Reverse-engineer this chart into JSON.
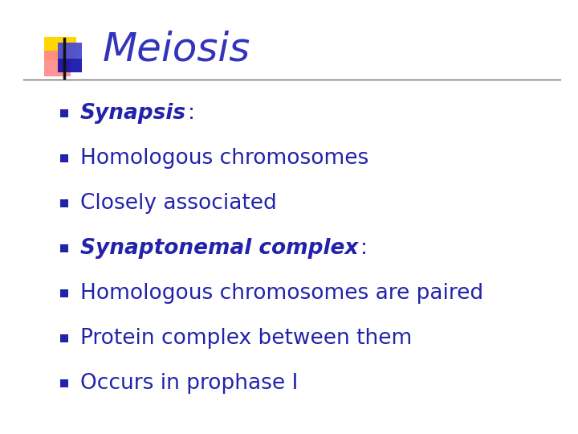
{
  "title": "Meiosis",
  "title_color": "#3333BB",
  "title_fontsize": 36,
  "background_color": "#FFFFFF",
  "bullet_color": "#2222AA",
  "bullet_square_color": "#2222AA",
  "line_color": "#444444",
  "bullet_items": [
    {
      "text_bold_italic": "Synapsis",
      "text_normal": ":",
      "has_bold": true
    },
    {
      "text_bold_italic": "",
      "text_normal": "Homologous chromosomes",
      "has_bold": false
    },
    {
      "text_bold_italic": "",
      "text_normal": "Closely associated",
      "has_bold": false
    },
    {
      "text_bold_italic": "Synaptonemal complex",
      "text_normal": ":",
      "has_bold": true
    },
    {
      "text_bold_italic": "",
      "text_normal": "Homologous chromosomes are paired",
      "has_bold": false
    },
    {
      "text_bold_italic": "",
      "text_normal": "Protein complex between them",
      "has_bold": false
    },
    {
      "text_bold_italic": "",
      "text_normal": "Occurs in prophase I",
      "has_bold": false
    }
  ],
  "bullet_fontsize": 19,
  "logo_yellow": "#FFD700",
  "logo_red_light": "#FF8888",
  "logo_red_dark": "#FF2222",
  "logo_blue_dark": "#1111AA",
  "logo_blue_mid": "#4444CC",
  "logo_blue_light": "#8888EE",
  "black_line_color": "#111111"
}
